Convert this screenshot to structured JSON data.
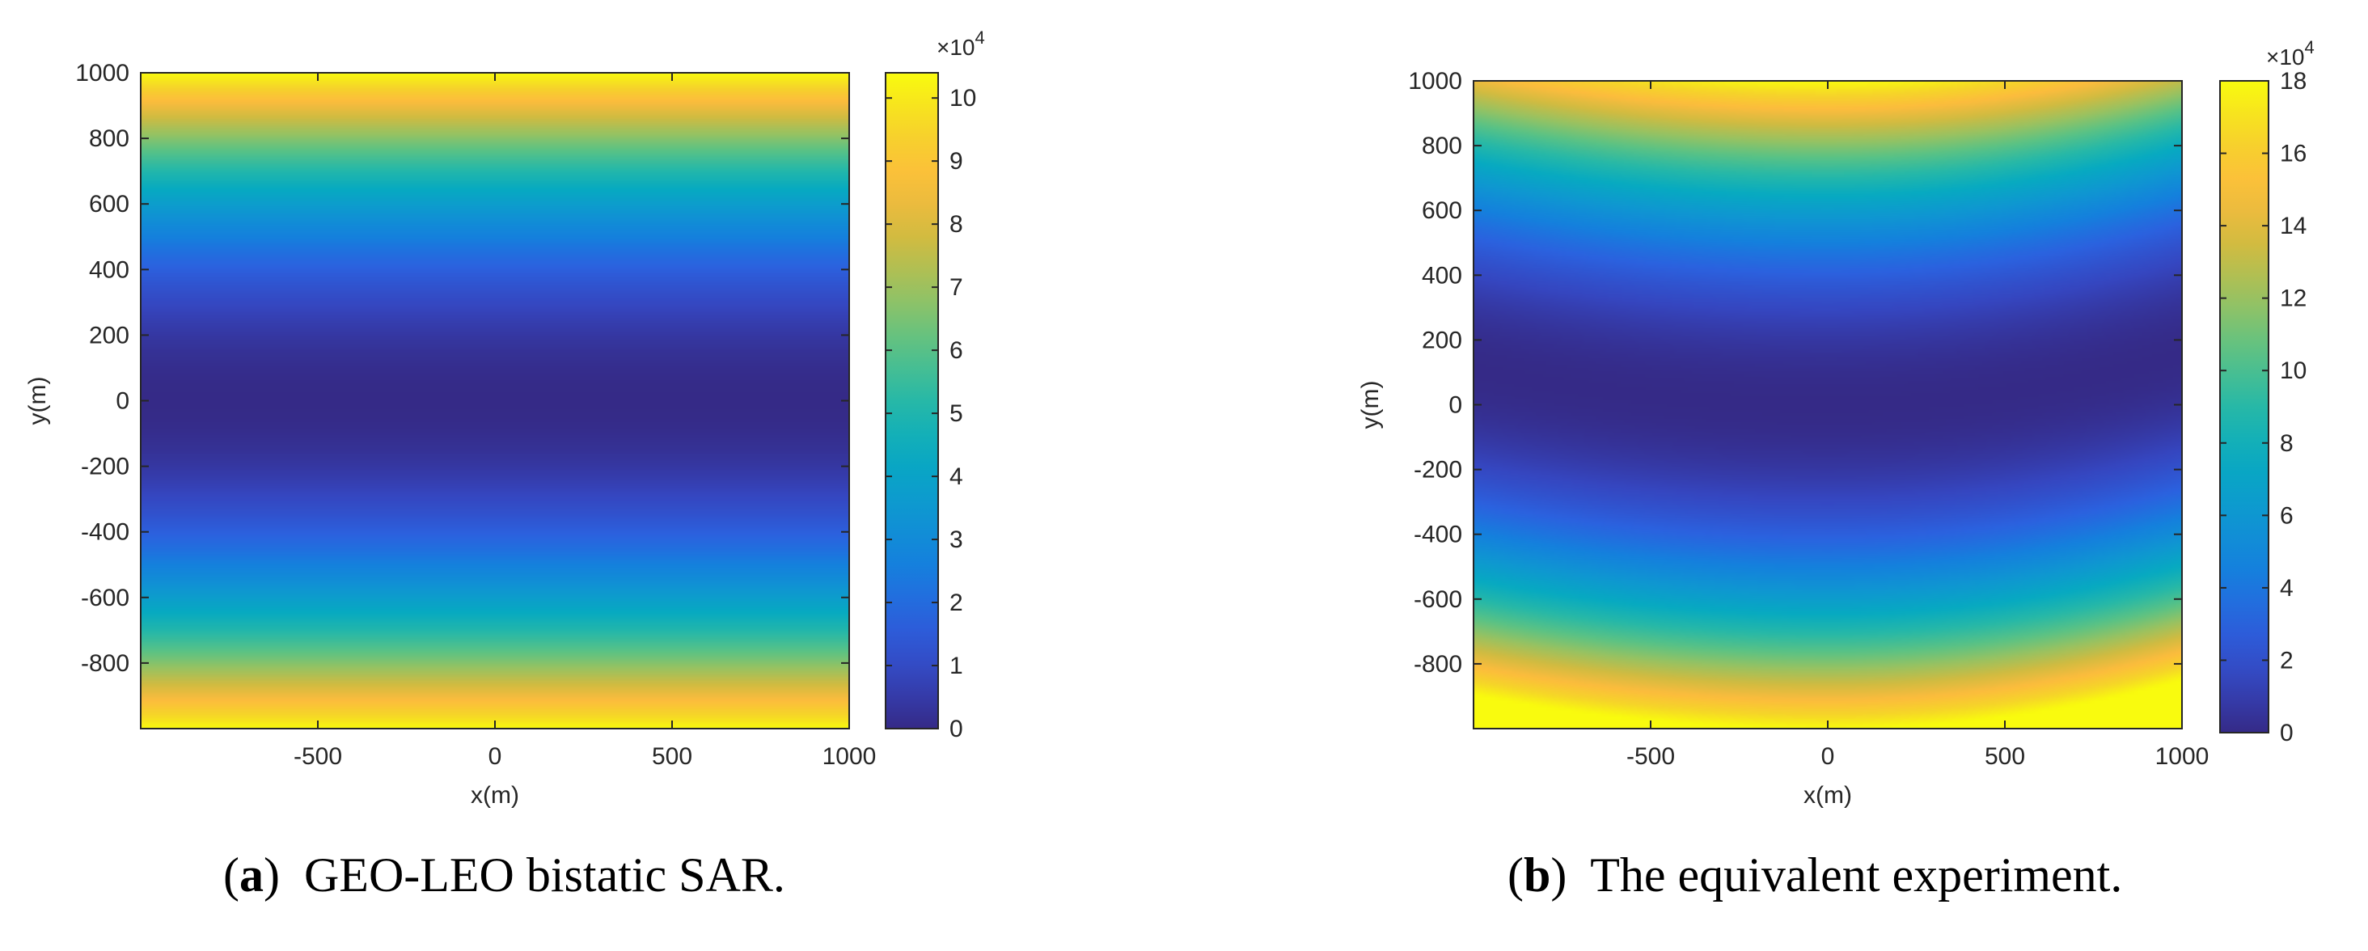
{
  "chart_data": [
    {
      "type": "heatmap",
      "caption_letter": "a",
      "caption_text": "GEO-LEO bistatic SAR.",
      "xlabel": "x(m)",
      "ylabel": "y(m)",
      "xlim": [
        -1000,
        1000
      ],
      "ylim": [
        -1000,
        1000
      ],
      "xticks": [
        -500,
        0,
        500,
        1000
      ],
      "yticks": [
        -800,
        -600,
        -400,
        -200,
        0,
        200,
        400,
        600,
        800,
        1000
      ],
      "colorbar": {
        "min": 0,
        "max": 10.4,
        "ticks": [
          0,
          1,
          2,
          3,
          4,
          5,
          6,
          7,
          8,
          9,
          10
        ],
        "multiplier_base": "×10",
        "multiplier_exp": "4"
      },
      "field": {
        "shape": "horizontal-bands",
        "value_at_center": 0,
        "value_at_edge": 10.4,
        "curvature": 0
      },
      "colormap": "parula",
      "grid": false
    },
    {
      "type": "heatmap",
      "caption_letter": "b",
      "caption_text": "The equivalent experiment.",
      "xlabel": "x(m)",
      "ylabel": "y(m)",
      "xlim": [
        -1000,
        1000
      ],
      "ylim": [
        -1000,
        1000
      ],
      "xticks": [
        -500,
        0,
        500,
        1000
      ],
      "yticks": [
        -800,
        -600,
        -400,
        -200,
        0,
        200,
        400,
        600,
        800,
        1000
      ],
      "colorbar": {
        "min": 0,
        "max": 18,
        "ticks": [
          0,
          2,
          4,
          6,
          8,
          10,
          12,
          14,
          16,
          18
        ],
        "multiplier_base": "×10",
        "multiplier_exp": "4"
      },
      "field": {
        "shape": "curved-bands",
        "value_at_center": 0,
        "value_at_edge": 18,
        "curvature": 150
      },
      "colormap": "parula",
      "grid": false
    }
  ]
}
